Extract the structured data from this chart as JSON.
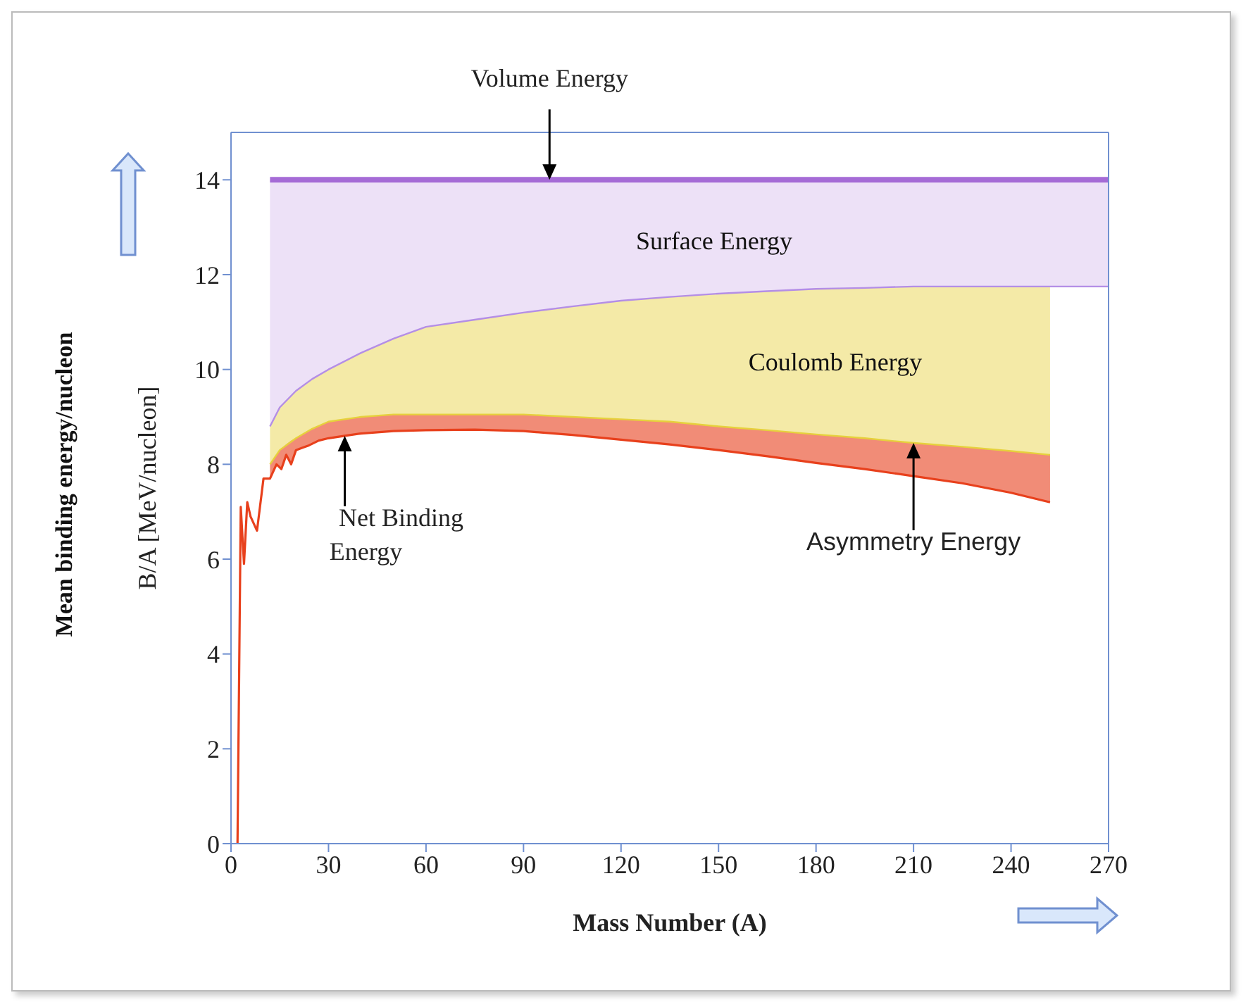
{
  "chart_data": {
    "type": "line",
    "xlabel": "Mass Number (A)",
    "ylabel": "B/A [MeV/nucleon]",
    "xlim": [
      0,
      270
    ],
    "xticks": [
      0,
      30,
      60,
      90,
      120,
      150,
      180,
      210,
      240,
      270
    ],
    "ylim": [
      0,
      15
    ],
    "yticks": [
      0,
      2,
      4,
      6,
      8,
      10,
      12,
      14
    ],
    "grid": false,
    "marker": "none",
    "series": [
      {
        "color": "#a56bd6",
        "x": [
          12,
          15,
          20,
          25,
          30,
          40,
          50,
          60,
          75,
          90,
          105,
          120,
          135,
          150,
          165,
          180,
          195,
          210,
          225,
          240,
          252,
          260,
          270
        ],
        "values": [
          14,
          14,
          14,
          14,
          14,
          14,
          14,
          14,
          14,
          14,
          14,
          14,
          14,
          14,
          14,
          14,
          14,
          14,
          14,
          14,
          14,
          14,
          14
        ],
        "lower": [
          8.8,
          9.2,
          9.55,
          9.8,
          10.0,
          10.35,
          10.65,
          10.9,
          11.05,
          11.2,
          11.33,
          11.45,
          11.53,
          11.6,
          11.65,
          11.7,
          11.72,
          11.75,
          11.75,
          11.75,
          11.75,
          11.75,
          11.75
        ],
        "upper": [
          14,
          14,
          14,
          14,
          14,
          14,
          14,
          14,
          14,
          14,
          14,
          14,
          14,
          14,
          14,
          14,
          14,
          14,
          14,
          14,
          14,
          14,
          14
        ]
      },
      {
        "color": "#b48ee6",
        "x": [
          12,
          15,
          20,
          25,
          30,
          40,
          50,
          60,
          75,
          90,
          105,
          120,
          135,
          150,
          165,
          180,
          195,
          210,
          225,
          240,
          252,
          260,
          270
        ],
        "values": [
          8.8,
          9.2,
          9.55,
          9.8,
          10.0,
          10.35,
          10.65,
          10.9,
          11.05,
          11.2,
          11.33,
          11.45,
          11.53,
          11.6,
          11.65,
          11.7,
          11.72,
          11.75,
          11.75,
          11.75,
          11.75,
          11.75,
          11.75
        ]
      },
      {
        "color": "#e6d13c",
        "x": [
          12,
          15,
          20,
          25,
          30,
          40,
          50,
          60,
          75,
          90,
          105,
          120,
          135,
          150,
          165,
          180,
          195,
          210,
          225,
          240,
          252
        ],
        "values": [
          8.0,
          8.3,
          8.55,
          8.75,
          8.9,
          9.0,
          9.05,
          9.05,
          9.05,
          9.05,
          9.0,
          8.95,
          8.9,
          8.8,
          8.72,
          8.63,
          8.55,
          8.45,
          8.37,
          8.28,
          8.2
        ],
        "lower": [
          8.0,
          8.3,
          8.55,
          8.75,
          8.9,
          9.0,
          9.05,
          9.05,
          9.05,
          9.05,
          9.0,
          8.95,
          8.9,
          8.8,
          8.72,
          8.63,
          8.55,
          8.45,
          8.37,
          8.28,
          8.2
        ],
        "upper": [
          8.8,
          9.2,
          9.55,
          9.8,
          10.0,
          10.35,
          10.65,
          10.9,
          11.05,
          11.2,
          11.33,
          11.45,
          11.53,
          11.6,
          11.65,
          11.7,
          11.72,
          11.75,
          11.75,
          11.75,
          11.75
        ]
      },
      {
        "color": "#e8401c",
        "x": [
          2,
          3,
          4,
          5,
          6,
          8,
          10,
          12,
          14,
          15.5,
          17,
          18.5,
          20,
          22,
          24,
          27,
          30,
          35,
          40,
          50,
          60,
          75,
          90,
          105,
          120,
          135,
          150,
          165,
          180,
          195,
          210,
          225,
          240,
          252
        ],
        "values": [
          0,
          7.1,
          5.9,
          7.2,
          6.9,
          6.6,
          7.7,
          7.7,
          8.0,
          7.9,
          8.2,
          8.0,
          8.3,
          8.35,
          8.4,
          8.5,
          8.55,
          8.6,
          8.65,
          8.7,
          8.72,
          8.73,
          8.7,
          8.62,
          8.52,
          8.42,
          8.3,
          8.17,
          8.03,
          7.9,
          7.75,
          7.6,
          7.4,
          7.2
        ],
        "lower": [
          null,
          null,
          null,
          null,
          null,
          null,
          null,
          7.7,
          8.0,
          7.9,
          8.2,
          8.0,
          8.3,
          8.35,
          8.4,
          8.5,
          8.55,
          8.6,
          8.65,
          8.7,
          8.72,
          8.73,
          8.7,
          8.62,
          8.52,
          8.42,
          8.3,
          8.17,
          8.03,
          7.9,
          7.75,
          7.6,
          7.4,
          7.2
        ],
        "upper": [
          null,
          null,
          null,
          null,
          null,
          null,
          null,
          8.0,
          8.2,
          8.33,
          8.42,
          8.5,
          8.55,
          8.63,
          8.71,
          8.8,
          8.9,
          8.95,
          9.0,
          9.05,
          9.05,
          9.05,
          9.05,
          9.0,
          8.95,
          8.9,
          8.8,
          8.72,
          8.63,
          8.55,
          8.45,
          8.37,
          8.28,
          8.2
        ]
      }
    ],
    "annotations": [
      {
        "text": "Volume Energy",
        "x": 98,
        "y": 14
      },
      "Surface Energy",
      "Coulomb Energy",
      {
        "text": "Net Binding Energy",
        "x": 35,
        "y": 8.6
      },
      {
        "text": "Asymmetry Energy",
        "x": 210,
        "y": 8.45
      },
      "Mean binding energy/nucleon"
    ]
  }
}
